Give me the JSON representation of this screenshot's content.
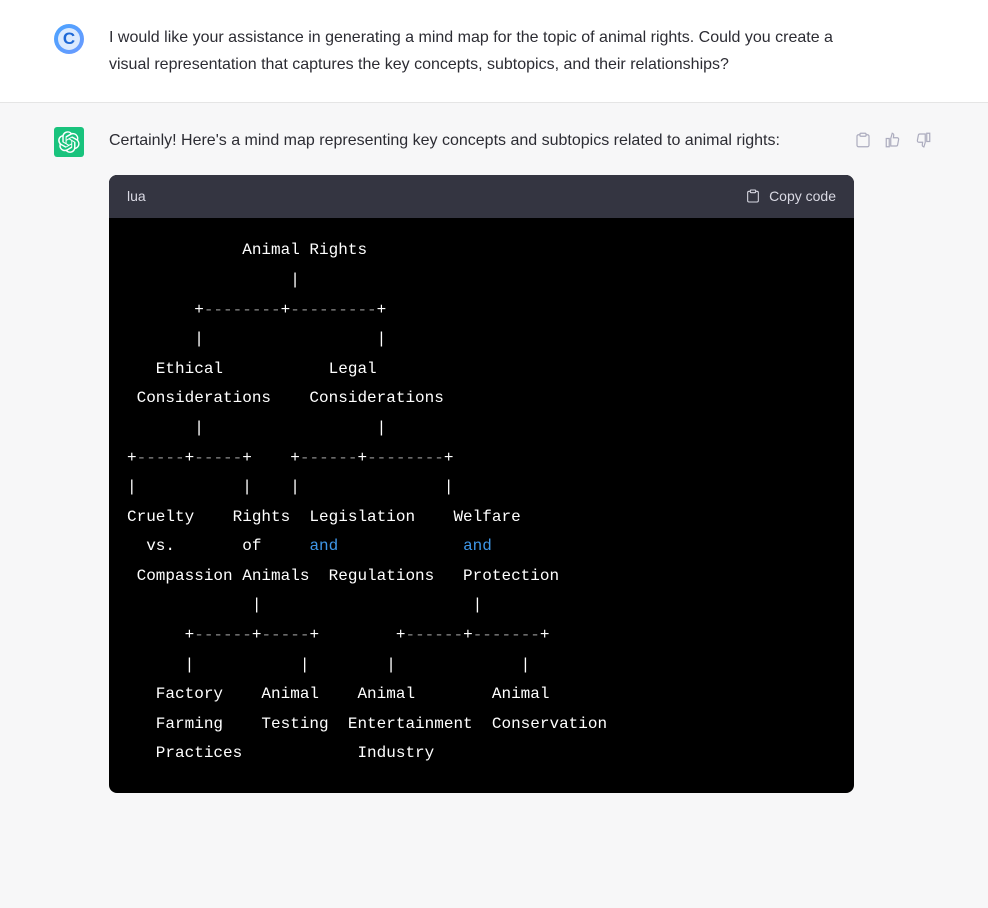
{
  "user": {
    "avatar_letter": "C",
    "message": "I would like your assistance in generating a mind map for the topic of animal rights. Could you create a visual representation that captures the key concepts, subtopics, and their relationships?"
  },
  "assistant": {
    "intro": "Certainly! Here's a mind map representing key concepts and subtopics related to animal rights:"
  },
  "code_block": {
    "language": "lua",
    "copy_label": "Copy code",
    "keyword_color": "#3f97e8",
    "dim_color": "#8d8d8d",
    "text_color": "#ffffff",
    "background": "#000000",
    "header_background": "#343541",
    "lines": [
      {
        "segments": [
          {
            "t": "            Animal Rights"
          }
        ]
      },
      {
        "segments": [
          {
            "t": "                 |"
          }
        ]
      },
      {
        "segments": [
          {
            "t": "       +"
          },
          {
            "t": "--------",
            "c": "dim"
          },
          {
            "t": "+"
          },
          {
            "t": "---------",
            "c": "dim"
          },
          {
            "t": "+"
          }
        ]
      },
      {
        "segments": [
          {
            "t": "       |                  |"
          }
        ]
      },
      {
        "segments": [
          {
            "t": "   Ethical           Legal"
          }
        ]
      },
      {
        "segments": [
          {
            "t": " Considerations    Considerations"
          }
        ]
      },
      {
        "segments": [
          {
            "t": "       |                  |"
          }
        ]
      },
      {
        "segments": [
          {
            "t": "+"
          },
          {
            "t": "-----",
            "c": "dim"
          },
          {
            "t": "+"
          },
          {
            "t": "-----",
            "c": "dim"
          },
          {
            "t": "+    +"
          },
          {
            "t": "------",
            "c": "dim"
          },
          {
            "t": "+"
          },
          {
            "t": "--------",
            "c": "dim"
          },
          {
            "t": "+"
          }
        ]
      },
      {
        "segments": [
          {
            "t": "|           |    |               |"
          }
        ]
      },
      {
        "segments": [
          {
            "t": "Cruelty    Rights  Legislation    Welfare"
          }
        ]
      },
      {
        "segments": [
          {
            "t": "  vs.       of     "
          },
          {
            "t": "and",
            "c": "kw"
          },
          {
            "t": "             "
          },
          {
            "t": "and",
            "c": "kw"
          }
        ]
      },
      {
        "segments": [
          {
            "t": " Compassion Animals  Regulations   Protection"
          }
        ]
      },
      {
        "segments": [
          {
            "t": "             |                      |"
          }
        ]
      },
      {
        "segments": [
          {
            "t": "      +"
          },
          {
            "t": "------",
            "c": "dim"
          },
          {
            "t": "+"
          },
          {
            "t": "-----",
            "c": "dim"
          },
          {
            "t": "+        +"
          },
          {
            "t": "------",
            "c": "dim"
          },
          {
            "t": "+"
          },
          {
            "t": "-------",
            "c": "dim"
          },
          {
            "t": "+"
          }
        ]
      },
      {
        "segments": [
          {
            "t": "      |           |        |             |"
          }
        ]
      },
      {
        "segments": [
          {
            "t": "   Factory    Animal    Animal        Animal"
          }
        ]
      },
      {
        "segments": [
          {
            "t": "   Farming    Testing  Entertainment  Conservation"
          }
        ]
      },
      {
        "segments": [
          {
            "t": "   Practices            Industry"
          }
        ]
      }
    ]
  },
  "colors": {
    "user_bg": "#ffffff",
    "assistant_bg": "#f7f7f8",
    "border": "#e5e5e5",
    "text": "#2c2c33",
    "action_icon": "#acacbe",
    "assistant_avatar_bg": "#19c37d"
  }
}
